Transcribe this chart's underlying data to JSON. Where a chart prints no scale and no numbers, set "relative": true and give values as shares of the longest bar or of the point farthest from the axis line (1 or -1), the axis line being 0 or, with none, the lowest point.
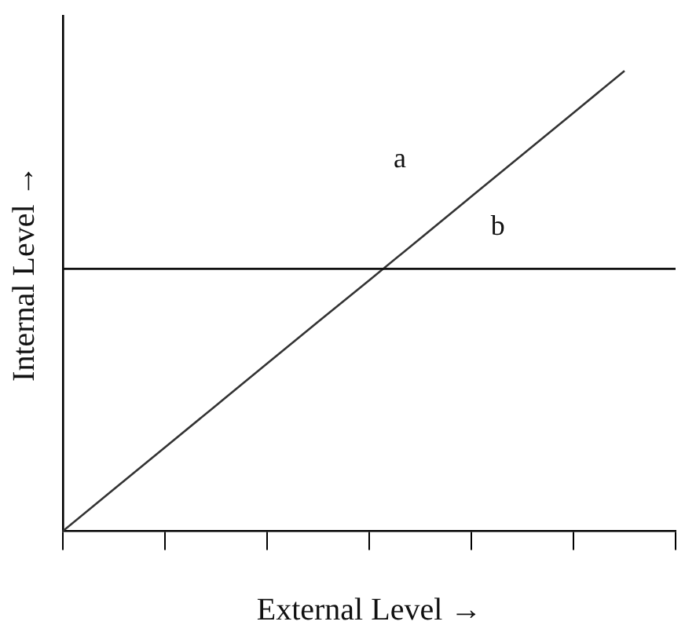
{
  "chart_data": {
    "type": "line",
    "relative": true,
    "xlabel": "External Level →",
    "ylabel": "Internal Level →",
    "categories": [
      null,
      null,
      null,
      null,
      null,
      null,
      null,
      null,
      null,
      null,
      null,
      null,
      null
    ],
    "series": [
      {
        "color": "#333333",
        "values": [
          0,
          0.091,
          0.182,
          0.273,
          0.364,
          0.455,
          0.545,
          0.636,
          0.727,
          0.818,
          0.909,
          1,
          null
        ]
      }
    ],
    "ref_lines": [
      {
        "axis": "y",
        "value": 0.57,
        "color": "#111111"
      }
    ],
    "annotations": [
      "a",
      "b"
    ],
    "grid": false,
    "legend": false,
    "marker": "none",
    "line_style": "solid"
  }
}
